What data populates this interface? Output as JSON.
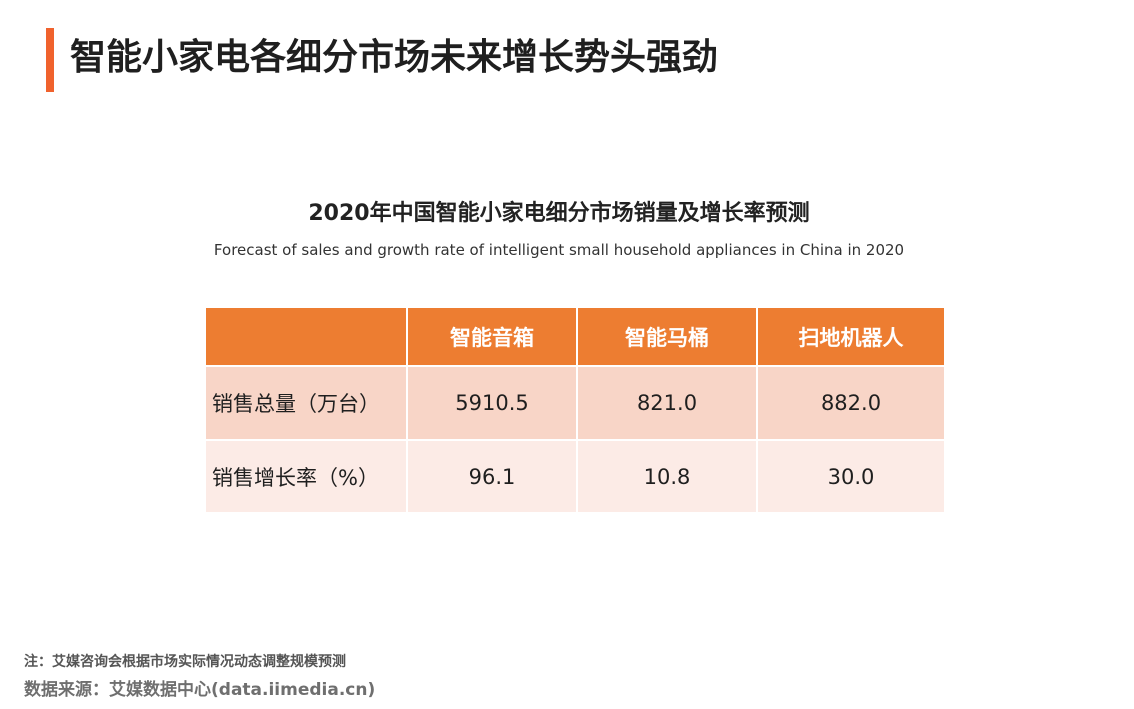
{
  "page": {
    "title": "智能小家电各细分市场未来增长势头强劲",
    "accent_color": "#f0622d"
  },
  "chart_data": {
    "type": "table",
    "title": "2020年中国智能小家电细分市场销量及增长率预测",
    "subtitle": "Forecast of sales and growth rate of intelligent small household appliances in China in 2020",
    "header_color": "#ed7d31",
    "columns": [
      "",
      "智能音箱",
      "智能马桶",
      "扫地机器人"
    ],
    "rows": [
      {
        "label": "销售总量（万台）",
        "values": [
          "5910.5",
          "821.0",
          "882.0"
        ]
      },
      {
        "label": "销售增长率（%）",
        "values": [
          "96.1",
          "10.8",
          "30.0"
        ]
      }
    ]
  },
  "footer": {
    "note": "注：艾媒咨询会根据市场实际情况动态调整规模预测",
    "source": "数据来源：艾媒数据中心(data.iimedia.cn)"
  }
}
